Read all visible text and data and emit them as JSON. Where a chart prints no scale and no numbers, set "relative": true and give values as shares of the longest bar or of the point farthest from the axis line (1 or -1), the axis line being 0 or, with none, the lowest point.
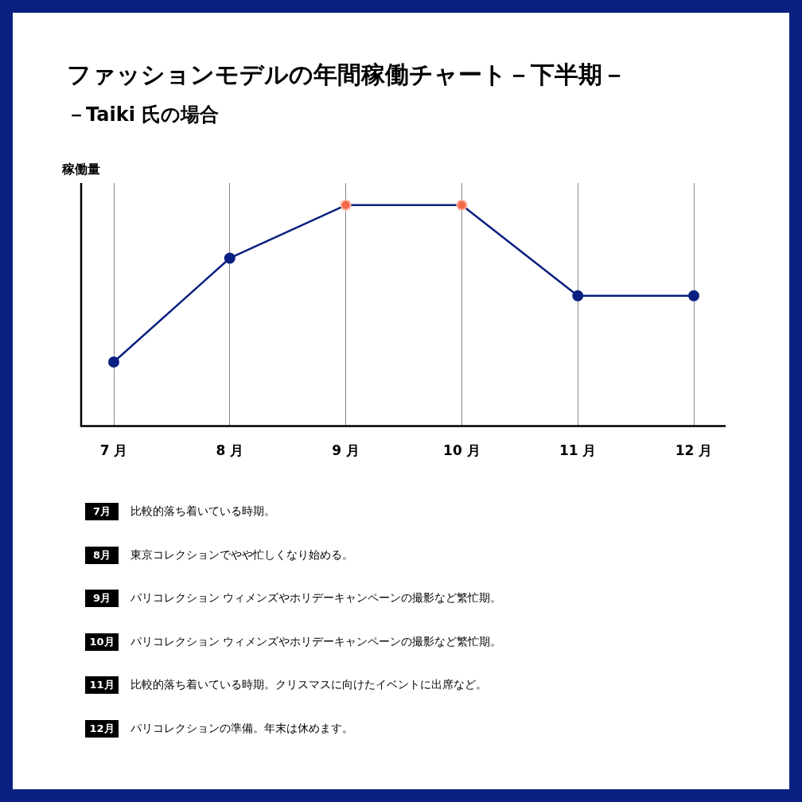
{
  "chart_data": {
    "type": "line",
    "title": "ファッションモデルの年間稼働チャート－下半期－",
    "subtitle": "－Taiki 氏の場合",
    "ylabel": "稼働量",
    "relative": true,
    "categories": [
      "7 月",
      "8 月",
      "9 月",
      "10 月",
      "11 月",
      "12 月"
    ],
    "series": [
      {
        "color": "#0a2080",
        "colors": [
          "#0a2080",
          "#0a2080",
          "#f26a4b",
          "#f26a4b",
          "#0a2080",
          "#0a2080"
        ],
        "values": [
          0.29,
          0.76,
          1,
          1,
          0.59,
          0.59
        ]
      }
    ],
    "grid": "x",
    "marker": "circle",
    "line_style": "solid",
    "legend": false,
    "annotations": [
      "比較的落ち着いている時期。",
      "東京コレクションでやや忙しくなり始める。",
      "パリコレクション ウィメンズやホリデーキャンペーンの撮影など繁忙期。",
      "パリコレクション ウィメンズやホリデーキャンペーンの撮影など繁忙期。",
      "比較的落ち着いている時期。クリスマスに向けたイベントに出席など。",
      "パリコレクションの準備。年末は休めます。"
    ]
  }
}
